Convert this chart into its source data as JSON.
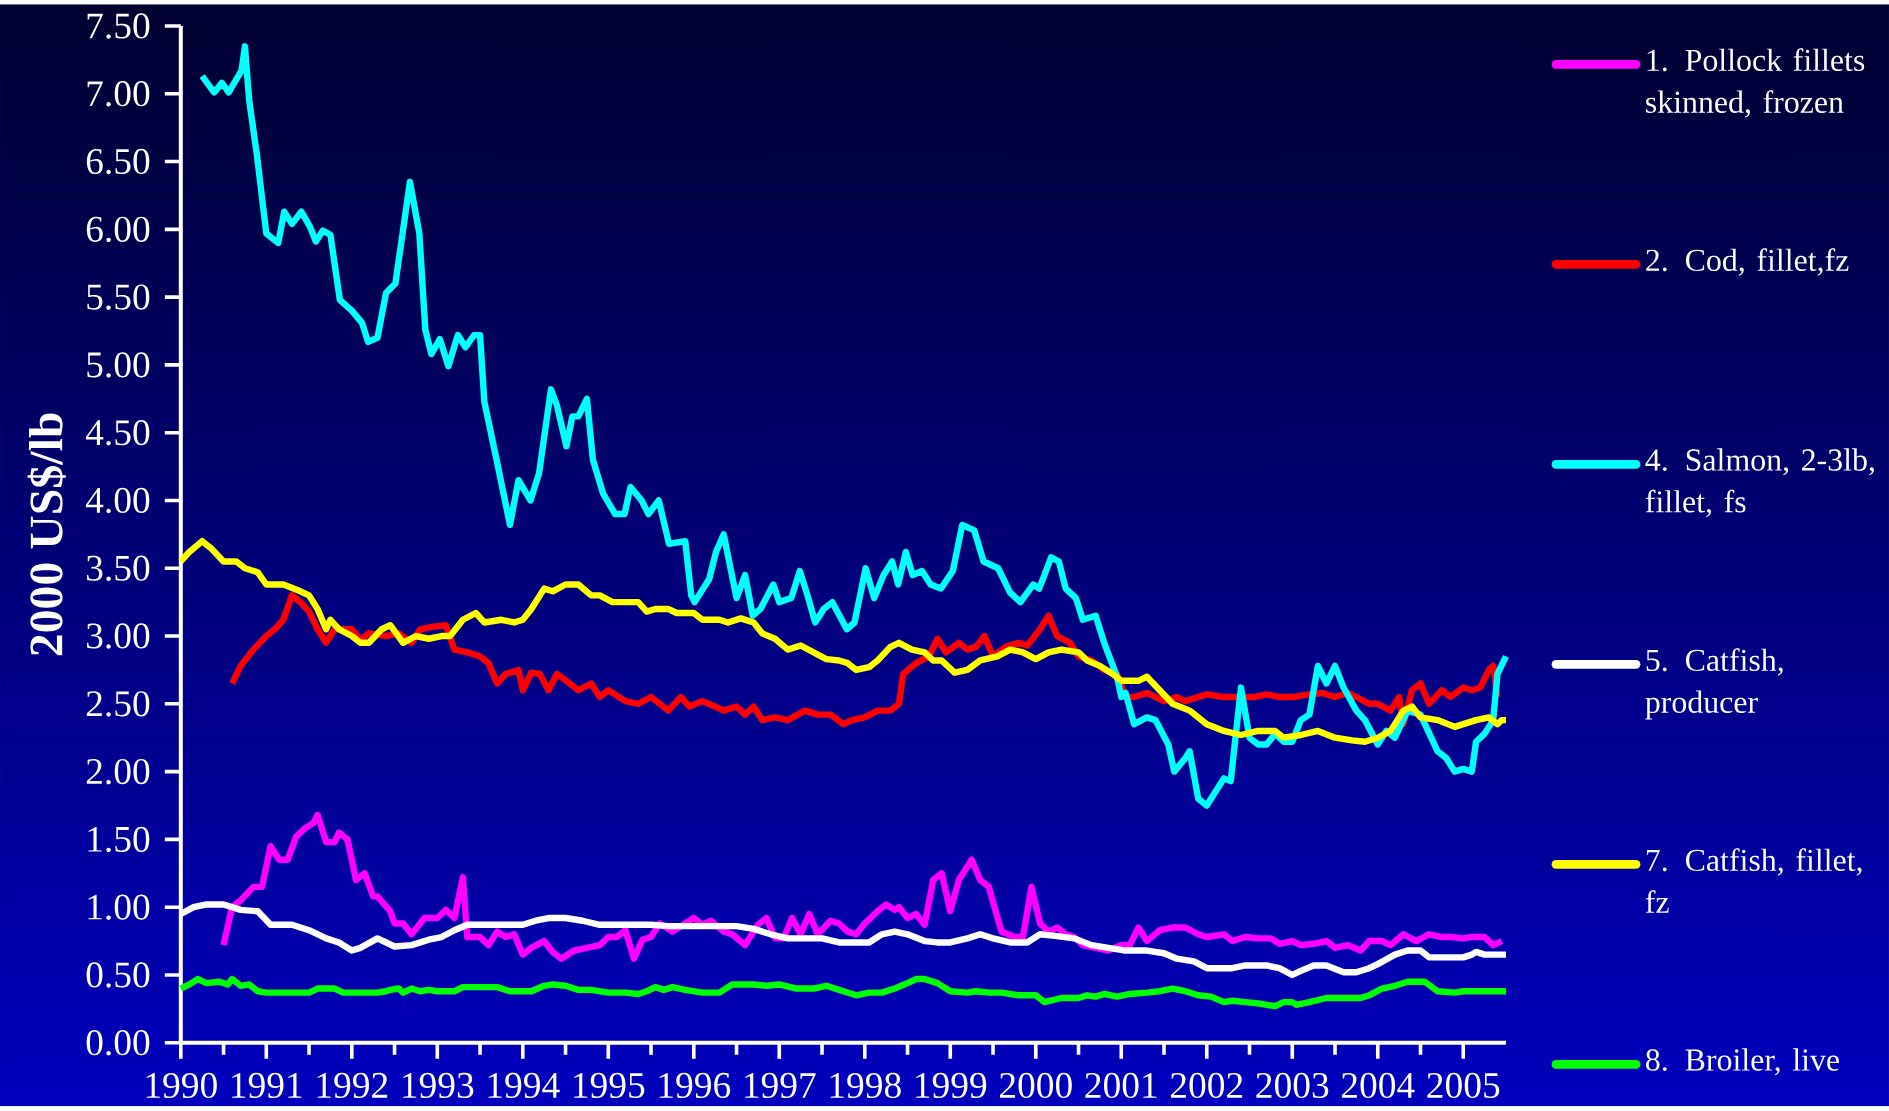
{
  "chart_data": {
    "type": "line",
    "ylabel": "2000 US$/lb",
    "xlim": [
      1990,
      2005.5
    ],
    "xticks": [
      1990,
      1991,
      1992,
      1993,
      1994,
      1995,
      1996,
      1997,
      1998,
      1999,
      2000,
      2001,
      2002,
      2003,
      2004,
      2005
    ],
    "ylim": [
      0,
      7.5
    ],
    "yticks": [
      {
        "value": 0,
        "label": "0.00"
      },
      {
        "value": 0.5,
        "label": "0.50"
      },
      {
        "value": 1,
        "label": "1.00"
      },
      {
        "value": 1.5,
        "label": "1.50"
      },
      {
        "value": 2,
        "label": "2.00"
      },
      {
        "value": 2.5,
        "label": "2.50"
      },
      {
        "value": 3,
        "label": "3.00"
      },
      {
        "value": 3.5,
        "label": "3.50"
      },
      {
        "value": 4,
        "label": "4.00"
      },
      {
        "value": 4.5,
        "label": "4.50"
      },
      {
        "value": 5,
        "label": "5.00"
      },
      {
        "value": 5.5,
        "label": "5.50"
      },
      {
        "value": 6,
        "label": "6.00"
      },
      {
        "value": 6.5,
        "label": "6.50"
      },
      {
        "value": 7,
        "label": "7.00"
      },
      {
        "value": 7.5,
        "label": "7.50"
      }
    ],
    "legend": "right",
    "series": [
      {
        "name": "1. Pollock fillets skinned, frozen",
        "color": "#ff00ff",
        "x": [
          1990.5,
          1990.6,
          1990.7,
          1990.85,
          1990.95,
          1991.05,
          1991.15,
          1991.25,
          1991.35,
          1991.45,
          1991.55,
          1991.6,
          1991.7,
          1991.8,
          1991.85,
          1991.95,
          1992.05,
          1992.15,
          1992.25,
          1992.3,
          1992.45,
          1992.5,
          1992.6,
          1992.7,
          1992.85,
          1993.0,
          1993.1,
          1993.2,
          1993.3,
          1993.35,
          1993.5,
          1993.6,
          1993.7,
          1993.8,
          1993.9,
          1994.0,
          1994.1,
          1994.25,
          1994.35,
          1994.45,
          1994.6,
          1994.75,
          1994.9,
          1995.0,
          1995.1,
          1995.2,
          1995.3,
          1995.4,
          1995.5,
          1995.6,
          1995.75,
          1995.9,
          1996.0,
          1996.1,
          1996.2,
          1996.35,
          1996.45,
          1996.6,
          1996.75,
          1996.85,
          1996.95,
          1997.05,
          1997.15,
          1997.25,
          1997.35,
          1997.45,
          1997.6,
          1997.7,
          1997.8,
          1997.9,
          1998.0,
          1998.15,
          1998.25,
          1998.35,
          1998.4,
          1998.5,
          1998.6,
          1998.7,
          1998.8,
          1998.9,
          1999.0,
          1999.1,
          1999.25,
          1999.35,
          1999.45,
          1999.6,
          1999.75,
          1999.85,
          1999.95,
          2000.05,
          2000.15,
          2000.25,
          2000.35,
          2000.45,
          2000.55,
          2000.7,
          2000.85,
          2001.0,
          2001.1,
          2001.2,
          2001.3,
          2001.45,
          2001.6,
          2001.75,
          2001.9,
          2002.0,
          2002.2,
          2002.3,
          2002.45,
          2002.6,
          2002.75,
          2002.85,
          2003.0,
          2003.1,
          2003.25,
          2003.4,
          2003.5,
          2003.65,
          2003.8,
          2003.9,
          2004.05,
          2004.15,
          2004.3,
          2004.45,
          2004.6,
          2004.75,
          2004.85,
          2005.0,
          2005.1,
          2005.25,
          2005.35,
          2005.45
        ],
        "values": [
          0.72,
          1.0,
          1.05,
          1.15,
          1.15,
          1.45,
          1.35,
          1.35,
          1.52,
          1.58,
          1.62,
          1.68,
          1.48,
          1.48,
          1.55,
          1.5,
          1.2,
          1.25,
          1.08,
          1.08,
          0.97,
          0.88,
          0.88,
          0.8,
          0.92,
          0.92,
          0.98,
          0.92,
          1.22,
          0.78,
          0.78,
          0.72,
          0.82,
          0.78,
          0.8,
          0.65,
          0.7,
          0.75,
          0.67,
          0.62,
          0.68,
          0.7,
          0.72,
          0.78,
          0.78,
          0.83,
          0.62,
          0.76,
          0.78,
          0.88,
          0.82,
          0.88,
          0.92,
          0.87,
          0.9,
          0.82,
          0.8,
          0.72,
          0.87,
          0.92,
          0.77,
          0.77,
          0.92,
          0.8,
          0.95,
          0.8,
          0.9,
          0.88,
          0.82,
          0.8,
          0.88,
          0.97,
          1.02,
          0.98,
          1.0,
          0.92,
          0.95,
          0.87,
          1.2,
          1.25,
          0.97,
          1.2,
          1.35,
          1.2,
          1.15,
          0.82,
          0.78,
          0.78,
          1.15,
          0.88,
          0.82,
          0.85,
          0.8,
          0.78,
          0.72,
          0.7,
          0.68,
          0.72,
          0.72,
          0.85,
          0.75,
          0.83,
          0.85,
          0.85,
          0.8,
          0.78,
          0.8,
          0.75,
          0.78,
          0.77,
          0.77,
          0.73,
          0.75,
          0.72,
          0.73,
          0.75,
          0.7,
          0.72,
          0.68,
          0.75,
          0.75,
          0.72,
          0.8,
          0.75,
          0.8,
          0.78,
          0.78,
          0.77,
          0.78,
          0.78,
          0.72,
          0.75
        ]
      },
      {
        "name": "2. Cod, fillet,fz",
        "color": "#ff0000",
        "x": [
          1990.6,
          1990.7,
          1990.85,
          1991.0,
          1991.1,
          1991.2,
          1991.3,
          1991.4,
          1991.5,
          1991.6,
          1991.7,
          1991.8,
          1992.0,
          1992.1,
          1992.2,
          1992.4,
          1992.55,
          1992.7,
          1992.8,
          1992.95,
          1993.1,
          1993.2,
          1993.35,
          1993.5,
          1993.6,
          1993.7,
          1993.8,
          1993.95,
          1994.0,
          1994.1,
          1994.2,
          1994.3,
          1994.4,
          1994.55,
          1994.65,
          1994.8,
          1994.9,
          1995.0,
          1995.2,
          1995.35,
          1995.5,
          1995.6,
          1995.7,
          1995.85,
          1995.95,
          1996.1,
          1996.25,
          1996.35,
          1996.5,
          1996.6,
          1996.7,
          1996.8,
          1996.95,
          1997.1,
          1997.3,
          1997.45,
          1997.6,
          1997.75,
          1997.85,
          1998.0,
          1998.15,
          1998.3,
          1998.4,
          1998.45,
          1998.6,
          1998.75,
          1998.85,
          1998.95,
          1999.1,
          1999.2,
          1999.3,
          1999.4,
          1999.5,
          1999.65,
          1999.8,
          1999.9,
          2000.05,
          2000.15,
          2000.25,
          2000.4,
          2000.5,
          2000.65,
          2000.8,
          2000.95,
          2001.05,
          2001.15,
          2001.3,
          2001.5,
          2001.65,
          2001.75,
          2001.9,
          2002.0,
          2002.2,
          2002.4,
          2002.55,
          2002.7,
          2002.85,
          2003.0,
          2003.2,
          2003.35,
          2003.5,
          2003.65,
          2003.75,
          2003.9,
          2004.0,
          2004.15,
          2004.25,
          2004.3,
          2004.4,
          2004.5,
          2004.6,
          2004.75,
          2004.85,
          2005.0,
          2005.1,
          2005.2,
          2005.3,
          2005.35,
          2005.4
        ],
        "values": [
          2.65,
          2.78,
          2.9,
          3.0,
          3.05,
          3.12,
          3.3,
          3.25,
          3.18,
          3.05,
          2.95,
          3.05,
          3.05,
          2.97,
          3.02,
          3.0,
          3.02,
          2.95,
          3.05,
          3.07,
          3.08,
          2.9,
          2.88,
          2.85,
          2.8,
          2.65,
          2.72,
          2.75,
          2.6,
          2.73,
          2.72,
          2.6,
          2.72,
          2.65,
          2.6,
          2.65,
          2.55,
          2.6,
          2.52,
          2.5,
          2.55,
          2.5,
          2.45,
          2.55,
          2.48,
          2.52,
          2.48,
          2.45,
          2.48,
          2.42,
          2.48,
          2.38,
          2.4,
          2.38,
          2.45,
          2.42,
          2.42,
          2.35,
          2.38,
          2.4,
          2.45,
          2.45,
          2.5,
          2.72,
          2.8,
          2.85,
          2.98,
          2.88,
          2.95,
          2.9,
          2.92,
          3.0,
          2.85,
          2.92,
          2.95,
          2.93,
          3.05,
          3.15,
          3.0,
          2.95,
          2.85,
          2.82,
          2.75,
          2.72,
          2.55,
          2.55,
          2.58,
          2.52,
          2.55,
          2.52,
          2.55,
          2.57,
          2.55,
          2.55,
          2.55,
          2.57,
          2.55,
          2.55,
          2.57,
          2.58,
          2.55,
          2.58,
          2.55,
          2.5,
          2.5,
          2.45,
          2.55,
          2.35,
          2.6,
          2.65,
          2.5,
          2.6,
          2.55,
          2.62,
          2.6,
          2.62,
          2.75,
          2.78,
          2.55
        ]
      },
      {
        "name": "4. Salmon, 2-3lb, fillet, fs",
        "color": "#00ffff",
        "x": [
          1990.25,
          1990.39,
          1990.48,
          1990.56,
          1990.71,
          1990.75,
          1990.8,
          1990.89,
          1991.0,
          1991.14,
          1991.21,
          1991.3,
          1991.41,
          1991.51,
          1991.58,
          1991.66,
          1991.75,
          1991.86,
          1992.0,
          1992.12,
          1992.19,
          1992.3,
          1992.4,
          1992.51,
          1992.68,
          1992.79,
          1992.86,
          1992.93,
          1993.03,
          1993.13,
          1993.24,
          1993.33,
          1993.43,
          1993.5,
          1993.55,
          1993.7,
          1993.85,
          1993.95,
          1994.09,
          1994.19,
          1994.33,
          1994.4,
          1994.51,
          1994.58,
          1994.65,
          1994.75,
          1994.82,
          1994.94,
          1995.08,
          1995.19,
          1995.26,
          1995.39,
          1995.47,
          1995.59,
          1995.71,
          1995.9,
          1995.97,
          1996.01,
          1996.18,
          1996.26,
          1996.35,
          1996.43,
          1996.5,
          1996.6,
          1996.69,
          1996.78,
          1996.93,
          1997.0,
          1997.14,
          1997.24,
          1997.33,
          1997.42,
          1997.52,
          1997.62,
          1997.79,
          1997.88,
          1998.01,
          1998.11,
          1998.22,
          1998.32,
          1998.39,
          1998.48,
          1998.56,
          1998.67,
          1998.77,
          1998.89,
          1999.03,
          1999.14,
          1999.28,
          1999.39,
          1999.56,
          1999.7,
          1999.82,
          1999.97,
          2000.04,
          2000.18,
          2000.27,
          2000.35,
          2000.47,
          2000.55,
          2000.7,
          2000.8,
          2000.95,
          2001.0,
          2001.05,
          2001.15,
          2001.3,
          2001.4,
          2001.55,
          2001.62,
          2001.75,
          2001.8,
          2001.9,
          2002.0,
          2002.1,
          2002.2,
          2002.28,
          2002.4,
          2002.5,
          2002.6,
          2002.7,
          2002.8,
          2002.9,
          2003.0,
          2003.1,
          2003.2,
          2003.3,
          2003.4,
          2003.5,
          2003.6,
          2003.75,
          2003.85,
          2004.0,
          2004.1,
          2004.2,
          2004.35,
          2004.5,
          2004.7,
          2004.8,
          2004.9,
          2005.0,
          2005.1,
          2005.15,
          2005.25,
          2005.35,
          2005.4,
          2005.5
        ],
        "values": [
          7.13,
          7.01,
          7.08,
          7.01,
          7.17,
          7.35,
          6.95,
          6.55,
          5.97,
          5.9,
          6.13,
          6.04,
          6.13,
          6.02,
          5.91,
          5.99,
          5.96,
          5.48,
          5.4,
          5.31,
          5.17,
          5.2,
          5.53,
          5.6,
          6.35,
          5.97,
          5.26,
          5.08,
          5.19,
          4.99,
          5.22,
          5.13,
          5.22,
          5.22,
          4.73,
          4.28,
          3.82,
          4.15,
          4.0,
          4.2,
          4.82,
          4.7,
          4.4,
          4.62,
          4.62,
          4.75,
          4.3,
          4.05,
          3.9,
          3.9,
          4.1,
          4.0,
          3.9,
          4.0,
          3.68,
          3.7,
          3.3,
          3.25,
          3.42,
          3.62,
          3.75,
          3.5,
          3.28,
          3.45,
          3.15,
          3.2,
          3.38,
          3.25,
          3.28,
          3.48,
          3.3,
          3.1,
          3.2,
          3.25,
          3.05,
          3.1,
          3.5,
          3.28,
          3.45,
          3.55,
          3.38,
          3.62,
          3.45,
          3.48,
          3.38,
          3.35,
          3.48,
          3.82,
          3.78,
          3.55,
          3.5,
          3.32,
          3.25,
          3.38,
          3.35,
          3.58,
          3.55,
          3.35,
          3.28,
          3.12,
          3.15,
          2.95,
          2.7,
          2.55,
          2.58,
          2.35,
          2.4,
          2.38,
          2.2,
          2.0,
          2.1,
          2.15,
          1.8,
          1.75,
          1.85,
          1.95,
          1.93,
          2.62,
          2.25,
          2.2,
          2.2,
          2.28,
          2.22,
          2.22,
          2.38,
          2.42,
          2.78,
          2.65,
          2.78,
          2.62,
          2.45,
          2.38,
          2.2,
          2.3,
          2.25,
          2.45,
          2.42,
          2.15,
          2.1,
          2.0,
          2.02,
          2.0,
          2.22,
          2.28,
          2.38,
          2.72,
          2.85
        ]
      },
      {
        "name": "5. Catfish, producer",
        "color": "#ffffff",
        "x": [
          1990.0,
          1990.15,
          1990.3,
          1990.5,
          1990.7,
          1990.9,
          1991.05,
          1991.3,
          1991.5,
          1991.7,
          1991.85,
          1992.0,
          1992.1,
          1992.3,
          1992.5,
          1992.7,
          1992.9,
          1993.05,
          1993.2,
          1993.35,
          1993.5,
          1993.8,
          1994.0,
          1994.15,
          1994.3,
          1994.5,
          1994.7,
          1994.9,
          1995.2,
          1995.5,
          1995.7,
          1995.9,
          1996.2,
          1996.5,
          1996.7,
          1996.9,
          1997.1,
          1997.3,
          1997.5,
          1997.7,
          1997.9,
          1998.05,
          1998.2,
          1998.35,
          1998.5,
          1998.7,
          1998.85,
          1999.0,
          1999.2,
          1999.35,
          1999.5,
          1999.7,
          1999.9,
          2000.05,
          2000.2,
          2000.45,
          2000.65,
          2000.85,
          2001.05,
          2001.3,
          2001.5,
          2001.65,
          2001.85,
          2002.0,
          2002.3,
          2002.45,
          2002.7,
          2002.85,
          2003.0,
          2003.1,
          2003.25,
          2003.4,
          2003.6,
          2003.75,
          2003.9,
          2004.0,
          2004.2,
          2004.35,
          2004.5,
          2004.6,
          2004.8,
          2005.0,
          2005.1,
          2005.15,
          2005.25,
          2005.5
        ],
        "values": [
          0.95,
          1.0,
          1.02,
          1.02,
          0.98,
          0.97,
          0.87,
          0.87,
          0.83,
          0.77,
          0.74,
          0.68,
          0.7,
          0.77,
          0.71,
          0.72,
          0.76,
          0.78,
          0.83,
          0.87,
          0.87,
          0.87,
          0.87,
          0.9,
          0.92,
          0.92,
          0.9,
          0.87,
          0.87,
          0.87,
          0.86,
          0.86,
          0.86,
          0.86,
          0.84,
          0.8,
          0.77,
          0.77,
          0.77,
          0.74,
          0.74,
          0.74,
          0.8,
          0.82,
          0.8,
          0.75,
          0.74,
          0.74,
          0.77,
          0.8,
          0.77,
          0.74,
          0.74,
          0.8,
          0.79,
          0.77,
          0.72,
          0.7,
          0.68,
          0.68,
          0.66,
          0.62,
          0.6,
          0.55,
          0.55,
          0.57,
          0.57,
          0.55,
          0.5,
          0.53,
          0.57,
          0.57,
          0.52,
          0.52,
          0.55,
          0.58,
          0.65,
          0.68,
          0.68,
          0.63,
          0.63,
          0.63,
          0.65,
          0.67,
          0.65,
          0.65
        ]
      },
      {
        "name": "7. Catfish, fillet, fz",
        "color": "#ffff00",
        "x": [
          1990.0,
          1990.1,
          1990.25,
          1990.35,
          1990.5,
          1990.65,
          1990.75,
          1990.9,
          1991.0,
          1991.2,
          1991.4,
          1991.5,
          1991.6,
          1991.7,
          1991.75,
          1991.85,
          1992.0,
          1992.1,
          1992.2,
          1992.35,
          1992.45,
          1992.6,
          1992.75,
          1992.9,
          1993.05,
          1993.15,
          1993.3,
          1993.45,
          1993.55,
          1993.75,
          1993.9,
          1994.0,
          1994.1,
          1994.25,
          1994.35,
          1994.5,
          1994.65,
          1994.8,
          1994.9,
          1995.05,
          1995.2,
          1995.35,
          1995.45,
          1995.55,
          1995.7,
          1995.8,
          1996.0,
          1996.1,
          1996.3,
          1996.4,
          1996.55,
          1996.7,
          1996.8,
          1996.95,
          1997.1,
          1997.25,
          1997.4,
          1997.55,
          1997.7,
          1997.8,
          1997.9,
          1998.05,
          1998.15,
          1998.3,
          1998.4,
          1998.55,
          1998.7,
          1998.8,
          1998.9,
          1999.05,
          1999.2,
          1999.35,
          1999.55,
          1999.7,
          1999.85,
          2000.0,
          2000.15,
          2000.3,
          2000.5,
          2000.6,
          2000.75,
          2000.9,
          2001.0,
          2001.2,
          2001.3,
          2001.45,
          2001.6,
          2001.8,
          2002.0,
          2002.2,
          2002.4,
          2002.6,
          2002.8,
          2002.9,
          2003.1,
          2003.3,
          2003.5,
          2003.7,
          2003.85,
          2004.0,
          2004.15,
          2004.3,
          2004.4,
          2004.5,
          2004.7,
          2004.9,
          2005.0,
          2005.15,
          2005.3,
          2005.4,
          2005.45,
          2005.5
        ],
        "values": [
          3.55,
          3.62,
          3.7,
          3.65,
          3.55,
          3.55,
          3.5,
          3.47,
          3.38,
          3.38,
          3.33,
          3.3,
          3.2,
          3.05,
          3.12,
          3.05,
          3.0,
          2.95,
          2.95,
          3.05,
          3.08,
          2.95,
          3.0,
          2.98,
          3.0,
          3.0,
          3.12,
          3.17,
          3.1,
          3.12,
          3.1,
          3.12,
          3.2,
          3.35,
          3.33,
          3.38,
          3.38,
          3.3,
          3.3,
          3.25,
          3.25,
          3.25,
          3.18,
          3.2,
          3.2,
          3.17,
          3.17,
          3.12,
          3.12,
          3.1,
          3.13,
          3.1,
          3.02,
          2.98,
          2.9,
          2.93,
          2.88,
          2.83,
          2.82,
          2.8,
          2.75,
          2.77,
          2.82,
          2.92,
          2.95,
          2.9,
          2.88,
          2.82,
          2.82,
          2.73,
          2.75,
          2.82,
          2.85,
          2.9,
          2.88,
          2.83,
          2.88,
          2.9,
          2.88,
          2.82,
          2.78,
          2.72,
          2.67,
          2.67,
          2.7,
          2.6,
          2.5,
          2.45,
          2.35,
          2.3,
          2.27,
          2.3,
          2.3,
          2.25,
          2.27,
          2.3,
          2.25,
          2.23,
          2.22,
          2.25,
          2.3,
          2.45,
          2.48,
          2.4,
          2.38,
          2.33,
          2.35,
          2.38,
          2.4,
          2.35,
          2.38,
          2.38
        ]
      },
      {
        "name": "8. Broiler, live",
        "color": "#00ff00",
        "x": [
          1990.0,
          1990.1,
          1990.2,
          1990.3,
          1990.45,
          1990.55,
          1990.6,
          1990.7,
          1990.8,
          1990.9,
          1991.0,
          1991.5,
          1991.6,
          1991.8,
          1991.9,
          1992.3,
          1992.4,
          1992.45,
          1992.55,
          1992.6,
          1992.7,
          1992.8,
          1992.9,
          1993.0,
          1993.2,
          1993.3,
          1993.5,
          1993.7,
          1993.85,
          1994.1,
          1994.25,
          1994.35,
          1994.5,
          1994.65,
          1994.8,
          1995.0,
          1995.2,
          1995.35,
          1995.45,
          1995.55,
          1995.65,
          1995.75,
          1995.9,
          1996.1,
          1996.3,
          1996.45,
          1996.7,
          1996.85,
          1997.0,
          1997.2,
          1997.4,
          1997.55,
          1997.75,
          1997.9,
          1998.05,
          1998.2,
          1998.35,
          1998.5,
          1998.6,
          1998.7,
          1998.85,
          1999.0,
          1999.2,
          1999.3,
          1999.45,
          1999.6,
          1999.8,
          2000.0,
          2000.1,
          2000.3,
          2000.5,
          2000.6,
          2000.7,
          2000.8,
          2000.95,
          2001.1,
          2001.3,
          2001.45,
          2001.6,
          2001.75,
          2001.9,
          2002.05,
          2002.2,
          2002.3,
          2002.45,
          2002.6,
          2002.7,
          2002.8,
          2002.9,
          2003.0,
          2003.05,
          2003.2,
          2003.4,
          2003.6,
          2003.8,
          2003.9,
          2004.05,
          2004.2,
          2004.35,
          2004.55,
          2004.7,
          2004.9,
          2005.0,
          2005.1,
          2005.5
        ],
        "values": [
          0.4,
          0.43,
          0.47,
          0.44,
          0.45,
          0.43,
          0.47,
          0.42,
          0.43,
          0.38,
          0.37,
          0.37,
          0.4,
          0.4,
          0.37,
          0.37,
          0.38,
          0.39,
          0.4,
          0.37,
          0.4,
          0.38,
          0.39,
          0.38,
          0.38,
          0.41,
          0.41,
          0.41,
          0.38,
          0.38,
          0.42,
          0.43,
          0.42,
          0.39,
          0.39,
          0.37,
          0.37,
          0.36,
          0.38,
          0.41,
          0.39,
          0.41,
          0.39,
          0.37,
          0.37,
          0.43,
          0.43,
          0.42,
          0.43,
          0.4,
          0.4,
          0.42,
          0.38,
          0.35,
          0.37,
          0.37,
          0.4,
          0.44,
          0.47,
          0.47,
          0.44,
          0.38,
          0.37,
          0.38,
          0.37,
          0.37,
          0.35,
          0.35,
          0.3,
          0.33,
          0.33,
          0.35,
          0.34,
          0.36,
          0.34,
          0.36,
          0.37,
          0.38,
          0.4,
          0.38,
          0.35,
          0.34,
          0.3,
          0.31,
          0.3,
          0.29,
          0.28,
          0.27,
          0.3,
          0.3,
          0.28,
          0.3,
          0.33,
          0.33,
          0.33,
          0.35,
          0.4,
          0.42,
          0.45,
          0.45,
          0.38,
          0.37,
          0.38,
          0.38,
          0.38
        ]
      }
    ]
  }
}
